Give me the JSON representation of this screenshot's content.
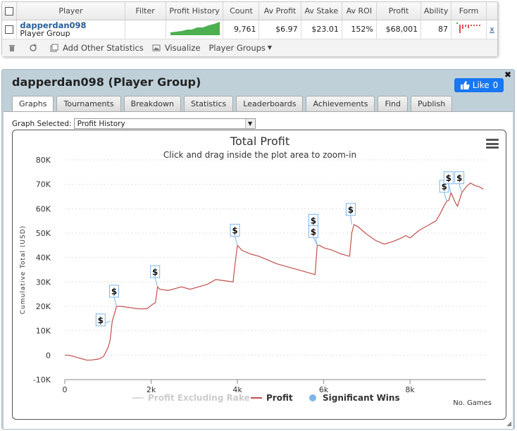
{
  "stats_table": {
    "headers": [
      "Player",
      "Filter",
      "Profit History",
      "Count",
      "Av Profit",
      "Av Stake",
      "Av ROI",
      "Profit",
      "Ability",
      "Form"
    ],
    "row": {
      "player_name": "dapperdan098",
      "player_sub": "Player Group",
      "count": "9,761",
      "av_profit": "$6.97",
      "av_stake": "$23.01",
      "av_roi": "152%",
      "profit": "$68,001",
      "ability": "87",
      "remove_label": "x"
    },
    "sparkline_color": "#4caf50",
    "form_color": "#d9534f"
  },
  "toolbar": {
    "add_stats": "Add Other Statistics",
    "visualize": "Visualize",
    "player_groups": "Player Groups"
  },
  "panel": {
    "title": "dapperdan098 (Player Group)",
    "like_label": "Like",
    "like_count": "0",
    "tabs": [
      "Graphs",
      "Tournaments",
      "Breakdown",
      "Statistics",
      "Leaderboards",
      "Achievements",
      "Find",
      "Publish"
    ],
    "active_tab": "Graphs",
    "graph_selected_label": "Graph Selected:",
    "graph_selected_value": "Profit History"
  },
  "chart_data": {
    "type": "line",
    "title": "Total Profit",
    "subtitle": "Click and drag inside the plot area to zoom-in",
    "xlabel": "No. Games",
    "ylabel": "Cumulative Total (USD)",
    "xlim": [
      0,
      9761
    ],
    "ylim": [
      -10000,
      80000
    ],
    "x_ticks": [
      0,
      2000,
      4000,
      6000,
      8000
    ],
    "x_tick_labels": [
      "0",
      "2k",
      "4k",
      "6k",
      "8k"
    ],
    "y_ticks": [
      -10000,
      0,
      10000,
      20000,
      30000,
      40000,
      50000,
      60000,
      70000,
      80000
    ],
    "y_tick_labels": [
      "-10K",
      "0",
      "10K",
      "20K",
      "30K",
      "40K",
      "50K",
      "60K",
      "70K",
      "80K"
    ],
    "line_color": "#c0504d",
    "significant_color": "#7cb5ec",
    "legend": [
      "Profit Excluding Rake",
      "Profit",
      "Significant Wins"
    ],
    "legend_position": "bottom",
    "series": [
      {
        "name": "Profit",
        "x": [
          0,
          100,
          200,
          300,
          400,
          500,
          600,
          700,
          800,
          900,
          1000,
          1050,
          1100,
          1150,
          1200,
          1300,
          1500,
          1700,
          1900,
          2050,
          2100,
          2150,
          2200,
          2400,
          2500,
          2700,
          2900,
          3100,
          3300,
          3500,
          3700,
          3900,
          3950,
          4000,
          4100,
          4300,
          4500,
          4700,
          4900,
          5100,
          5300,
          5500,
          5700,
          5800,
          5850,
          5900,
          6000,
          6200,
          6400,
          6500,
          6600,
          6650,
          6700,
          6800,
          6900,
          7000,
          7200,
          7400,
          7600,
          7800,
          7900,
          8000,
          8200,
          8400,
          8600,
          8700,
          8800,
          8850,
          8900,
          8950,
          9000,
          9050,
          9100,
          9200,
          9300,
          9400,
          9500,
          9600,
          9700
        ],
        "y": [
          0,
          0,
          -500,
          -1000,
          -1500,
          -2000,
          -2000,
          -1800,
          -1500,
          -500,
          3000,
          6000,
          14000,
          17000,
          20000,
          20000,
          19500,
          19000,
          19000,
          21000,
          21500,
          28000,
          27000,
          26500,
          27000,
          28000,
          27000,
          28000,
          29000,
          31000,
          30500,
          30000,
          38000,
          45000,
          43000,
          41500,
          40500,
          39000,
          37500,
          36500,
          35500,
          34500,
          33500,
          33000,
          45000,
          45000,
          44000,
          43000,
          41500,
          41000,
          40500,
          50000,
          53500,
          52500,
          51000,
          49500,
          47000,
          45500,
          46500,
          48000,
          49000,
          48000,
          51000,
          53000,
          55000,
          58000,
          61500,
          63000,
          63500,
          66500,
          64500,
          62500,
          61000,
          66500,
          69000,
          70500,
          69500,
          69000,
          68000
        ]
      }
    ],
    "significant_wins": [
      {
        "x": 1050,
        "y": 14000,
        "label": "$"
      },
      {
        "x": 1200,
        "y": 20000,
        "label": "$"
      },
      {
        "x": 2150,
        "y": 28000,
        "label": "$"
      },
      {
        "x": 4000,
        "y": 45000,
        "label": "$"
      },
      {
        "x": 5850,
        "y": 45000,
        "label": "$"
      },
      {
        "x": 5850,
        "y": 45000,
        "label": "$"
      },
      {
        "x": 6650,
        "y": 53500,
        "label": "$"
      },
      {
        "x": 8850,
        "y": 63000,
        "label": "$"
      },
      {
        "x": 8950,
        "y": 66500,
        "label": "$"
      },
      {
        "x": 9200,
        "y": 66500,
        "label": "$"
      }
    ]
  }
}
